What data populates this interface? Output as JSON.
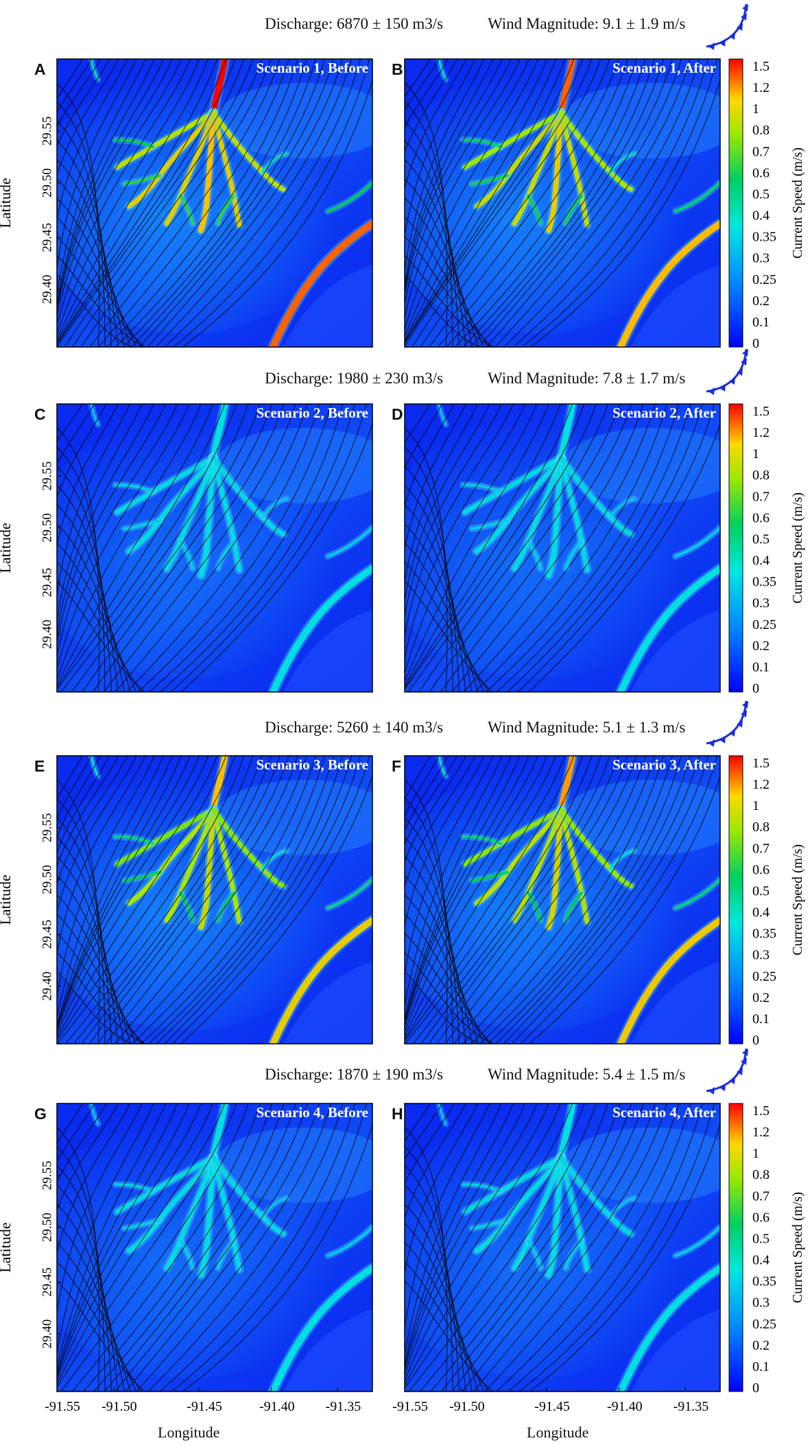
{
  "rows": [
    {
      "discharge": "Discharge: 6870 ± 150 m3/s",
      "wind": "Wind Magnitude: 9.1 ± 1.9 m/s",
      "panels": [
        {
          "letter": "A",
          "title": "Scenario 1, Before",
          "intensity": 1.0
        },
        {
          "letter": "B",
          "title": "Scenario 1, After",
          "intensity": 0.95
        }
      ]
    },
    {
      "discharge": "Discharge: 1980 ± 230 m3/s",
      "wind": "Wind Magnitude: 7.8 ± 1.7 m/s",
      "panels": [
        {
          "letter": "C",
          "title": "Scenario 2, Before",
          "intensity": 0.42
        },
        {
          "letter": "D",
          "title": "Scenario 2, After",
          "intensity": 0.38
        }
      ]
    },
    {
      "discharge": "Discharge: 5260 ± 140 m3/s",
      "wind": "Wind Magnitude: 5.1 ± 1.3 m/s",
      "panels": [
        {
          "letter": "E",
          "title": "Scenario 3, Before",
          "intensity": 0.9
        },
        {
          "letter": "F",
          "title": "Scenario 3, After",
          "intensity": 0.92
        }
      ]
    },
    {
      "discharge": "Discharge: 1870 ± 190 m3/s",
      "wind": "Wind Magnitude: 5.4 ± 1.5 m/s",
      "panels": [
        {
          "letter": "G",
          "title": "Scenario 4, Before",
          "intensity": 0.4
        },
        {
          "letter": "H",
          "title": "Scenario 4, After",
          "intensity": 0.4
        }
      ]
    }
  ],
  "y_axis": {
    "label": "Latitude",
    "ticks": [
      "29.55",
      "29.50",
      "29.45",
      "29.40"
    ]
  },
  "x_axis": {
    "label": "Longitude",
    "ticks": [
      "-91.55",
      "-91.50",
      "-91.45",
      "-91.40",
      "-91.35"
    ]
  },
  "colorbar": {
    "label": "Current Speed (m/s)",
    "ticks": [
      "1.5",
      "1.2",
      "1",
      "0.8",
      "0.7",
      "0.6",
      "0.5",
      "0.4",
      "0.35",
      "0.3",
      "0.25",
      "0.2",
      "0.1",
      "0"
    ]
  },
  "colors": {
    "warm_front": "#1a2fd6",
    "low_speed": "#0a2af0",
    "high_speed": "#ff1a00"
  },
  "chart_data": {
    "type": "heatmap",
    "ylabel": "Latitude",
    "xlabel": "Longitude",
    "xlim": [
      -91.57,
      -91.31
    ],
    "ylim": [
      29.37,
      29.58
    ],
    "colorbar_range": [
      0,
      1.5
    ],
    "panels": [
      "A",
      "B",
      "C",
      "D",
      "E",
      "F",
      "G",
      "H"
    ]
  }
}
